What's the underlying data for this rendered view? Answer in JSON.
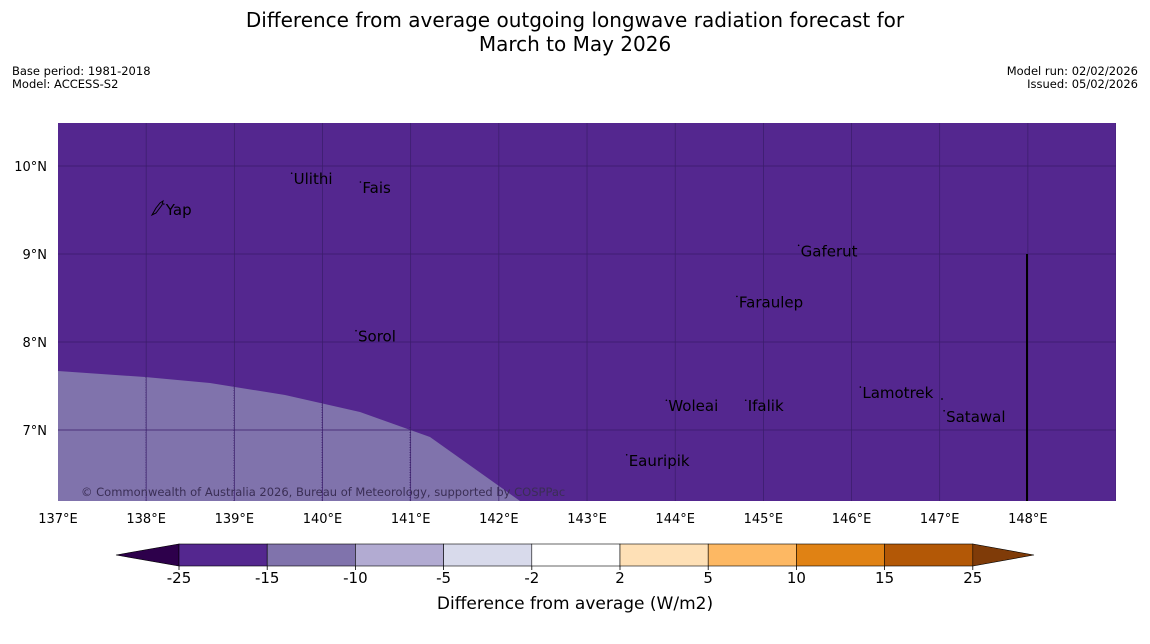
{
  "title": {
    "line1": "Difference from average outgoing longwave radiation forecast for",
    "line2": "March to May 2026"
  },
  "meta": {
    "base_period": "Base period: 1981-2018",
    "model": "Model: ACCESS-S2",
    "model_run": "Model run: 02/02/2026",
    "issued": "Issued: 05/02/2026"
  },
  "map": {
    "lon_labels": [
      "137°E",
      "138°E",
      "139°E",
      "140°E",
      "141°E",
      "142°E",
      "143°E",
      "144°E",
      "145°E",
      "146°E",
      "147°E",
      "148°E"
    ],
    "lat_labels": [
      "10°N",
      "9°N",
      "8°N",
      "7°N"
    ],
    "background_color": "#54278f",
    "region_color": "#8073ac",
    "places": [
      {
        "name": "Yap",
        "lon": 138.2,
        "lat": 9.5
      },
      {
        "name": "Ulithi",
        "lon": 139.65,
        "lat": 9.85
      },
      {
        "name": "Fais",
        "lon": 140.43,
        "lat": 9.75
      },
      {
        "name": "Gaferut",
        "lon": 145.4,
        "lat": 9.03
      },
      {
        "name": "Faraulep",
        "lon": 144.7,
        "lat": 8.45
      },
      {
        "name": "Sorol",
        "lon": 140.38,
        "lat": 8.06
      },
      {
        "name": "Woleai",
        "lon": 143.9,
        "lat": 7.27
      },
      {
        "name": "Ifalik",
        "lon": 144.8,
        "lat": 7.27
      },
      {
        "name": "Lamotrek",
        "lon": 146.1,
        "lat": 7.42
      },
      {
        "name": "Satawal",
        "lon": 147.05,
        "lat": 7.15
      },
      {
        "name": "Eauripik",
        "lon": 143.45,
        "lat": 6.65
      }
    ],
    "copyright": "© Commonwealth of Australia 2026, Bureau of Meteorology, supported by COSPPac"
  },
  "colorbar": {
    "label": "Difference from average (W/m2)",
    "ticks": [
      "-25",
      "-15",
      "-10",
      "-5",
      "-2",
      "2",
      "5",
      "10",
      "15",
      "25"
    ],
    "colors": [
      "#54278f",
      "#8073ac",
      "#b2abd2",
      "#d8daeb",
      "#ffffff",
      "#fee0b6",
      "#fdb863",
      "#e08214",
      "#b35806"
    ],
    "low_extend": "#2d004b",
    "high_extend": "#7f3b08"
  }
}
